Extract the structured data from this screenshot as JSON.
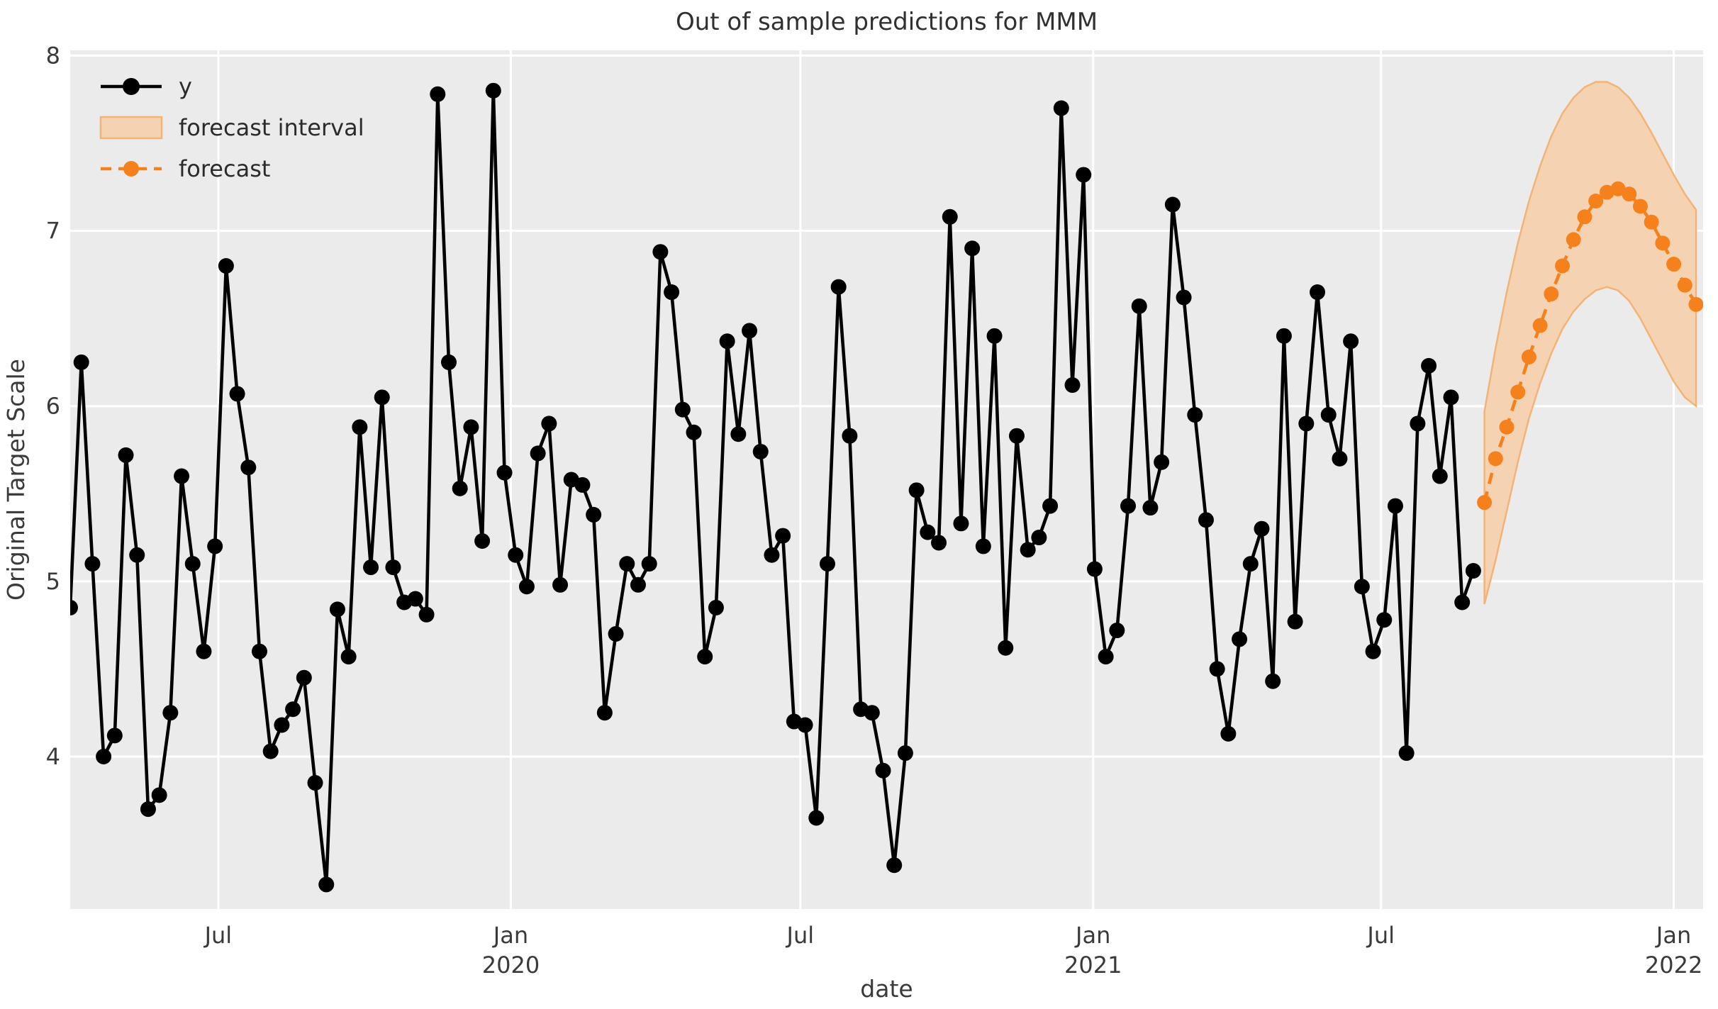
{
  "title": "Out of sample predictions for MMM",
  "axes": {
    "x_label": "date",
    "y_label": "Original Target Scale",
    "y_ticks": [
      8,
      7,
      6,
      5,
      4
    ],
    "x_ticks": [
      {
        "line1": "Jul",
        "line2": "",
        "week_index": 13.3
      },
      {
        "line1": "Jan",
        "line2": "2020",
        "week_index": 39.57
      },
      {
        "line1": "Jul",
        "line2": "",
        "week_index": 65.57
      },
      {
        "line1": "Jan",
        "line2": "2021",
        "week_index": 91.86
      },
      {
        "line1": "Jul",
        "line2": "",
        "week_index": 117.71
      },
      {
        "line1": "Jan",
        "line2": "2022",
        "week_index": 144.0
      }
    ],
    "ylim": [
      3.13,
      8.03
    ],
    "grid": true
  },
  "legend": {
    "position": "upper left",
    "items": [
      {
        "label": "y",
        "swatch": "line-marker"
      },
      {
        "label": "forecast interval",
        "swatch": "patch"
      },
      {
        "label": "forecast",
        "swatch": "dashed-line-marker"
      }
    ]
  },
  "colors": {
    "plot_background": "#EBEBEB",
    "gridline": "#FFFFFF",
    "observed_series": "#000000",
    "forecast_series": "#F5811D",
    "interval_fill": "#F5D3B2",
    "interval_edge": "#F3B377",
    "title_text": "#303030",
    "tick_text": "#3A3A3A"
  },
  "chart_data": {
    "type": "line",
    "title": "Out of sample predictions for MMM",
    "xlabel": "date",
    "ylabel": "Original Target Scale",
    "x_unit": "weekly date index",
    "x_tick_labels": [
      "Jul",
      "Jan 2020",
      "Jul",
      "Jan 2021",
      "Jul",
      "Jan 2022"
    ],
    "ylim": [
      3.13,
      8.03
    ],
    "grid": true,
    "legend_position": "upper left",
    "series": [
      {
        "name": "y",
        "style": "solid line with circle markers",
        "color": "#000000",
        "start_week_index": 0,
        "approx_start": "Apr 2019",
        "approx_end": "Aug 2021",
        "values": [
          4.85,
          6.25,
          5.1,
          4.0,
          4.12,
          5.72,
          5.15,
          3.7,
          3.78,
          4.25,
          5.6,
          5.1,
          4.6,
          5.2,
          6.8,
          6.07,
          5.65,
          4.6,
          4.03,
          4.18,
          4.27,
          4.45,
          3.85,
          3.27,
          4.84,
          4.57,
          5.88,
          5.08,
          6.05,
          5.08,
          4.88,
          4.9,
          4.81,
          7.78,
          6.25,
          5.53,
          5.88,
          5.23,
          7.8,
          5.62,
          5.15,
          4.97,
          5.73,
          5.9,
          4.98,
          5.58,
          5.55,
          5.38,
          4.25,
          4.7,
          5.1,
          4.98,
          5.1,
          6.88,
          6.65,
          5.98,
          5.85,
          4.57,
          4.85,
          6.37,
          5.84,
          6.43,
          5.74,
          5.15,
          5.26,
          4.2,
          4.18,
          3.65,
          5.1,
          6.68,
          5.83,
          4.27,
          4.25,
          3.92,
          3.38,
          4.02,
          5.52,
          5.28,
          5.22,
          7.08,
          5.33,
          6.9,
          5.2,
          6.4,
          4.62,
          5.83,
          5.18,
          5.25,
          5.43,
          7.7,
          6.12,
          7.32,
          5.07,
          4.57,
          4.72,
          5.43,
          6.57,
          5.42,
          5.68,
          7.15,
          6.62,
          5.95,
          5.35,
          4.5,
          4.13,
          4.67,
          5.1,
          5.3,
          4.43,
          6.4,
          4.77,
          5.9,
          6.65,
          5.95,
          5.7,
          6.37,
          4.97,
          4.6,
          4.78,
          5.43,
          4.02,
          5.9,
          6.23,
          5.6,
          6.05,
          4.88,
          5.06
        ]
      },
      {
        "name": "forecast",
        "style": "dashed line with circle markers",
        "color": "#F5811D",
        "start_week_index": 127,
        "approx_start": "Sep 2021",
        "approx_end": "Jan 2022",
        "values": [
          5.45,
          5.7,
          5.88,
          6.08,
          6.28,
          6.46,
          6.64,
          6.8,
          6.95,
          7.08,
          7.17,
          7.22,
          7.24,
          7.21,
          7.14,
          7.05,
          6.93,
          6.81,
          6.69,
          6.58
        ]
      },
      {
        "name": "forecast interval lower",
        "style": "band lower bound",
        "start_week_index": 127,
        "values": [
          4.87,
          5.12,
          5.4,
          5.68,
          5.93,
          6.13,
          6.3,
          6.44,
          6.54,
          6.61,
          6.66,
          6.68,
          6.66,
          6.6,
          6.5,
          6.38,
          6.26,
          6.14,
          6.05,
          6.0
        ]
      },
      {
        "name": "forecast interval upper",
        "style": "band upper bound",
        "start_week_index": 127,
        "values": [
          5.97,
          6.33,
          6.65,
          6.93,
          7.17,
          7.37,
          7.54,
          7.67,
          7.76,
          7.82,
          7.85,
          7.85,
          7.82,
          7.76,
          7.67,
          7.56,
          7.44,
          7.32,
          7.21,
          7.12
        ]
      }
    ]
  }
}
